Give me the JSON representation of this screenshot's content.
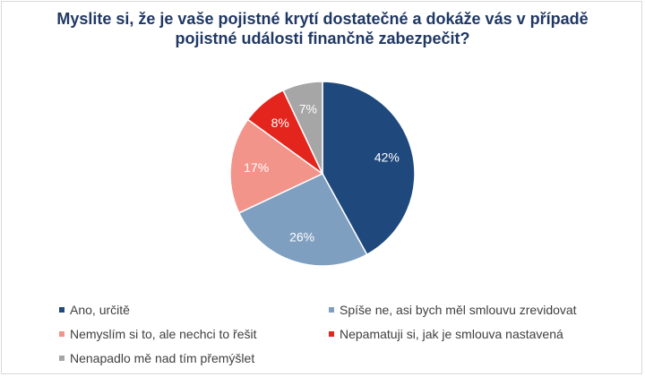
{
  "chart_data": {
    "type": "pie",
    "title_lines": [
      "Myslite si, že je vaše pojistné krytí dostatečné a dokáže vás v případě",
      "pojistné události finančně zabezpečit?"
    ],
    "categories": [
      "Ano, určitě",
      "Spíše ne, asi bych měl smlouvu zrevidovat",
      "Nemyslím si to, ale nechci to řešit",
      "Nepamatuji si, jak je smlouva nastavená",
      "Nenapadlo mě nad tím přemýšlet"
    ],
    "values": [
      42,
      26,
      17,
      8,
      7
    ],
    "value_labels": [
      "42%",
      "26%",
      "17%",
      "8%",
      "7%"
    ],
    "colors": [
      "#1f497d",
      "#7f9fc0",
      "#f2948a",
      "#e3251d",
      "#a6a6a6"
    ],
    "label_colors": [
      "#ffffff",
      "#ffffff",
      "#ffffff",
      "#ffffff",
      "#ffffff"
    ],
    "legend_position": "bottom"
  }
}
